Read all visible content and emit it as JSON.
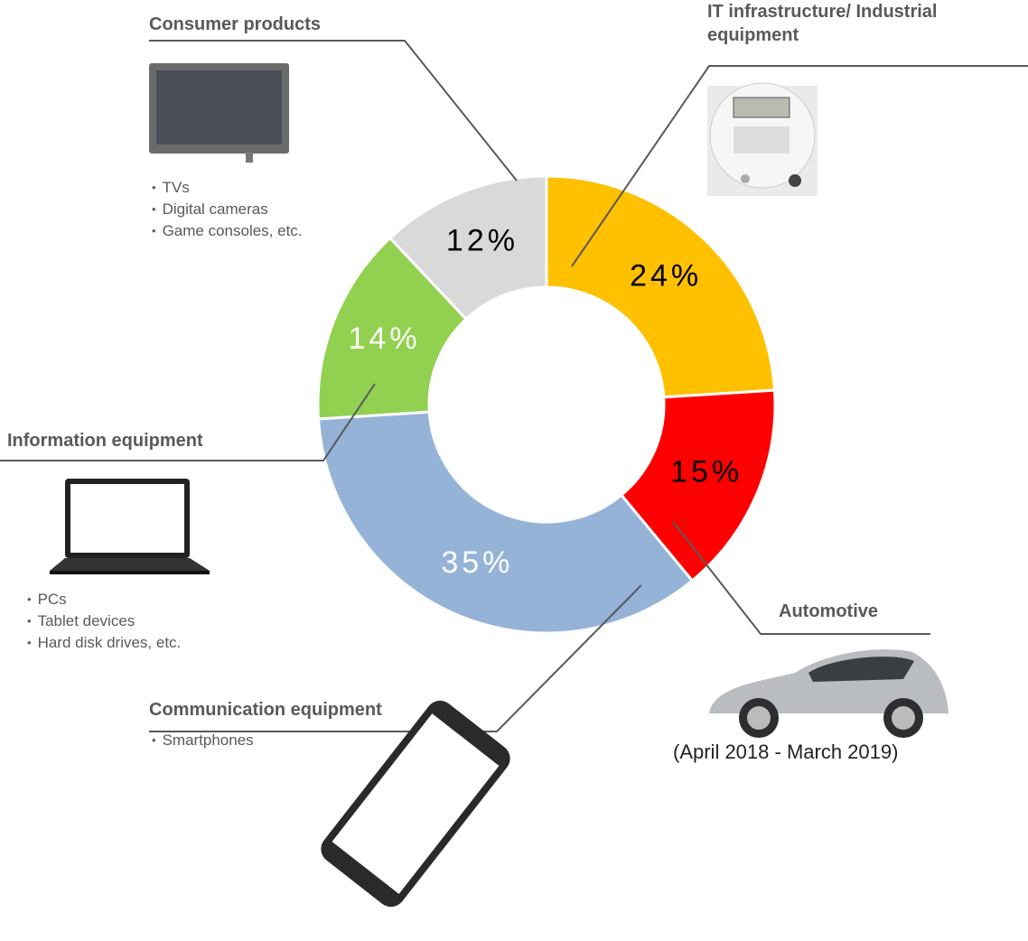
{
  "chart_data": {
    "type": "donut",
    "categories": [
      "IT infrastructure/ Industrial equipment",
      "Automotive",
      "Communication equipment",
      "Information equipment",
      "Consumer products"
    ],
    "values": [
      24,
      15,
      35,
      14,
      12
    ],
    "value_labels": [
      "24%",
      "15%",
      "35%",
      "14%",
      "12%"
    ],
    "colors": [
      "#ffc000",
      "#ff0000",
      "#95b3d7",
      "#92d050",
      "#d9d9d9"
    ],
    "label_colors": [
      "#000000",
      "#000000",
      "#ffffff",
      "#ffffff",
      "#000000"
    ],
    "details": [
      [],
      [],
      [
        "Smartphones"
      ],
      [
        "PCs",
        "Tablet devices",
        "Hard disk drives, etc."
      ],
      [
        "TVs",
        "Digital cameras",
        "Game consoles, etc."
      ]
    ],
    "note": "(April 2018 - March 2019)"
  }
}
